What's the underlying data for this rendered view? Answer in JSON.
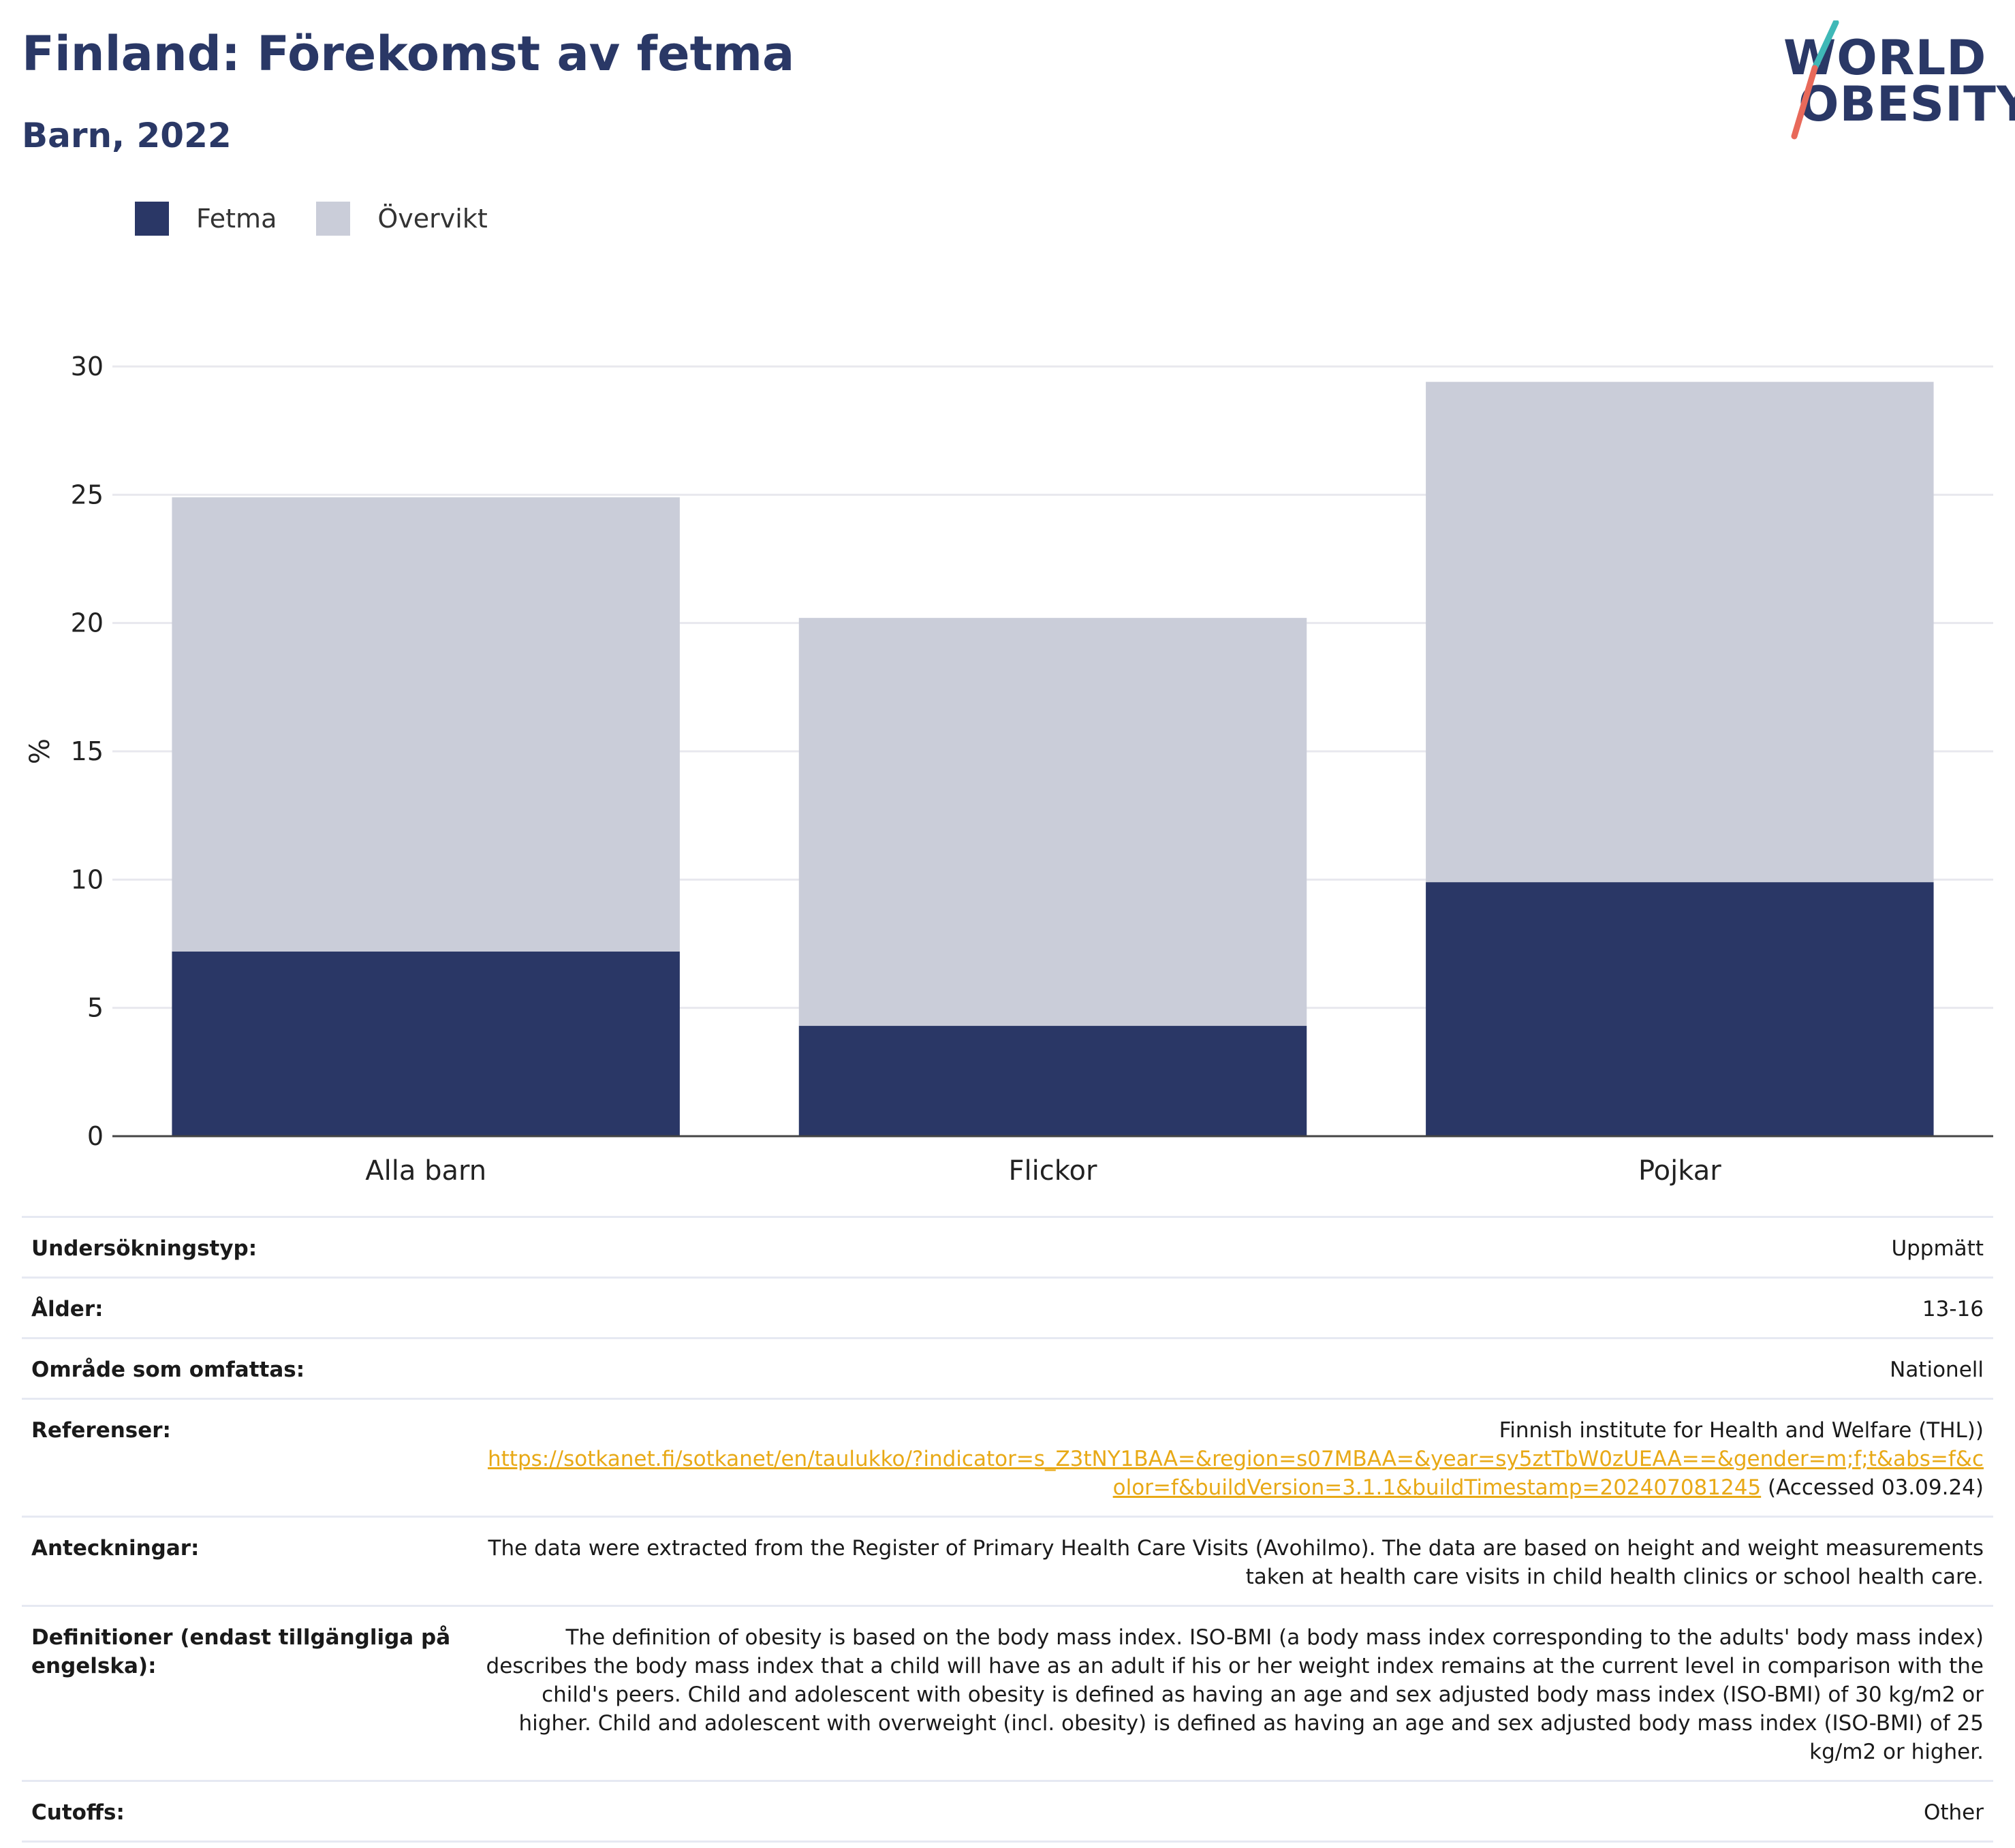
{
  "header": {
    "title": "Finland: Förekomst av fetma",
    "subtitle": "Barn, 2022"
  },
  "logo": {
    "line1": "WORLD",
    "line2": "OBESITY"
  },
  "colors": {
    "title": "#2a3866",
    "fetma": "#2a3766",
    "overvikt": "#cacdd9",
    "link": "#e8a916",
    "gridline": "#e8e8ee",
    "logo_teal": "#3fb8b7",
    "logo_coral": "#e8695a"
  },
  "legend": [
    {
      "label": "Fetma",
      "color": "#2a3766"
    },
    {
      "label": "Övervikt",
      "color": "#cacdd9"
    }
  ],
  "chart_data": {
    "type": "bar",
    "stacked": true,
    "title": "Finland: Förekomst av fetma",
    "subtitle": "Barn, 2022",
    "xlabel": "",
    "ylabel": "%",
    "ylim": [
      0,
      30
    ],
    "yticks": [
      0,
      5,
      10,
      15,
      20,
      25,
      30
    ],
    "grid": true,
    "legend_position": "top-left",
    "categories": [
      "Alla barn",
      "Flickor",
      "Pojkar"
    ],
    "series": [
      {
        "name": "Fetma",
        "values": [
          7.2,
          4.3,
          9.9
        ]
      },
      {
        "name": "Övervikt",
        "values": [
          17.7,
          15.9,
          19.5
        ]
      }
    ],
    "totals": [
      24.9,
      20.2,
      29.4
    ]
  },
  "meta": {
    "rows": [
      {
        "label": "Undersökningstyp:",
        "value": "Uppmätt"
      },
      {
        "label": "Ålder:",
        "value": "13-16"
      },
      {
        "label": "Område som omfattas:",
        "value": "Nationell"
      },
      {
        "label": "Referenser:",
        "value": "Finnish institute for Health and Welfare (THL))",
        "link": "https://sotkanet.fi/sotkanet/en/taulukko/?indicator=s_Z3tNY1BAA=&region=s07MBAA=&year=sy5ztTbW0zUEAA==&gender=m;f;t&abs=f&color=f&buildVersion=3.1.1&buildTimestamp=202407081245",
        "accessed": " (Accessed 03.09.24)"
      },
      {
        "label": "Anteckningar:",
        "value": "The data were extracted from the Register of Primary Health Care Visits (Avohilmo). The data are based on height and weight measurements taken at health care visits in child health clinics or school health care."
      },
      {
        "label": "Definitioner (endast tillgängliga på engelska):",
        "value": "The definition of obesity is based on the body mass index. ISO-BMI (a body mass index corresponding to the adults' body mass index) describes the body mass index that a child will have as an adult if his or her weight index remains at the current level in comparison with the child's peers. Child and adolescent with obesity is defined as having an age and sex adjusted body mass index (ISO-BMI) of 30 kg/m2 or higher. Child and adolescent with overweight (incl. obesity) is defined as having an age and sex adjusted body mass index (ISO-BMI) of 25 kg/m2 or higher."
      },
      {
        "label": "Cutoffs:",
        "value": "Other"
      }
    ]
  }
}
